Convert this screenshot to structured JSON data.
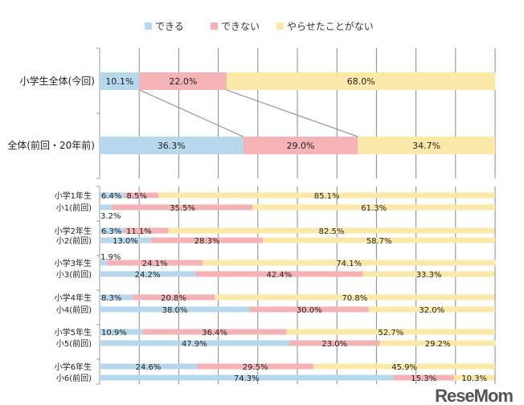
{
  "chart_data": [
    {
      "type": "bar",
      "orientation": "horizontal",
      "stacked": "percent",
      "legend": {
        "placement": "top",
        "entries": [
          "できる",
          "できない",
          "やらせたことがない"
        ]
      },
      "colors": [
        "#b7d7ec",
        "#f6b3b7",
        "#fbe9a9"
      ],
      "xlim": [
        0,
        100
      ],
      "grid": true,
      "categories": [
        "小学生全体(今回)",
        "全体(前回・20年前)"
      ],
      "series": [
        {
          "name": "できる",
          "values": [
            10.1,
            36.3
          ]
        },
        {
          "name": "できない",
          "values": [
            22.0,
            29.0
          ]
        },
        {
          "name": "やらせたことがない",
          "values": [
            68.0,
            34.7
          ]
        }
      ],
      "labels": [
        [
          "10.1%",
          "22.0%",
          "68.0%"
        ],
        [
          "36.3%",
          "29.0%",
          "34.7%"
        ]
      ]
    },
    {
      "type": "bar",
      "orientation": "horizontal",
      "stacked": "percent",
      "xlim": [
        0,
        100
      ],
      "grid": true,
      "categories": [
        "小学1年生",
        "小1(前回)",
        "小学2年生",
        "小2(前回)",
        "小学3年生",
        "小3(前回)",
        "小学4年生",
        "小4(前回)",
        "小学5年生",
        "小5(前回)",
        "小学6年生",
        "小6(前回)"
      ],
      "series": [
        {
          "name": "できる",
          "values": [
            6.4,
            3.2,
            6.3,
            13.0,
            1.9,
            24.2,
            8.3,
            38.0,
            10.9,
            47.9,
            24.6,
            74.3
          ]
        },
        {
          "name": "できない",
          "values": [
            8.5,
            35.5,
            11.1,
            28.3,
            24.1,
            42.4,
            20.8,
            30.0,
            36.4,
            23.0,
            29.5,
            15.3
          ]
        },
        {
          "name": "やらせたことがない",
          "values": [
            85.1,
            61.3,
            82.5,
            58.7,
            74.1,
            33.3,
            70.8,
            32.0,
            52.7,
            29.2,
            45.9,
            10.3
          ]
        }
      ]
    }
  ],
  "watermark": "ReseMom"
}
